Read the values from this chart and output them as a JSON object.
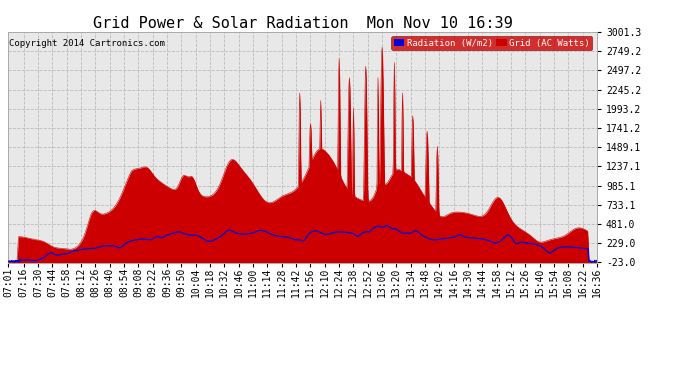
{
  "title": "Grid Power & Solar Radiation  Mon Nov 10 16:39",
  "copyright": "Copyright 2014 Cartronics.com",
  "legend_labels": [
    "Radiation (W/m2)",
    "Grid (AC Watts)"
  ],
  "legend_colors_bg": [
    "#0000dd",
    "#cc0000"
  ],
  "yticks": [
    -23.0,
    229.0,
    481.0,
    733.1,
    985.1,
    1237.1,
    1489.1,
    1741.2,
    1993.2,
    2245.2,
    2497.2,
    2749.2,
    3001.3
  ],
  "ymin": -23.0,
  "ymax": 3001.3,
  "background_color": "#ffffff",
  "grid_color": "#bbbbbb",
  "plot_bg": "#e8e8e8",
  "red_fill_color": "#cc0000",
  "blue_line_color": "#0000dd",
  "title_fontsize": 11,
  "tick_fontsize": 7,
  "x_tick_labels": [
    "07:01",
    "07:16",
    "07:30",
    "07:44",
    "07:58",
    "08:12",
    "08:26",
    "08:40",
    "08:54",
    "09:08",
    "09:22",
    "09:36",
    "09:50",
    "10:04",
    "10:18",
    "10:32",
    "10:46",
    "11:00",
    "11:14",
    "11:28",
    "11:42",
    "11:56",
    "12:10",
    "12:24",
    "12:38",
    "12:52",
    "13:06",
    "13:20",
    "13:34",
    "13:48",
    "14:02",
    "14:16",
    "14:30",
    "14:44",
    "14:58",
    "15:12",
    "15:26",
    "15:40",
    "15:54",
    "16:08",
    "16:22",
    "16:36"
  ]
}
